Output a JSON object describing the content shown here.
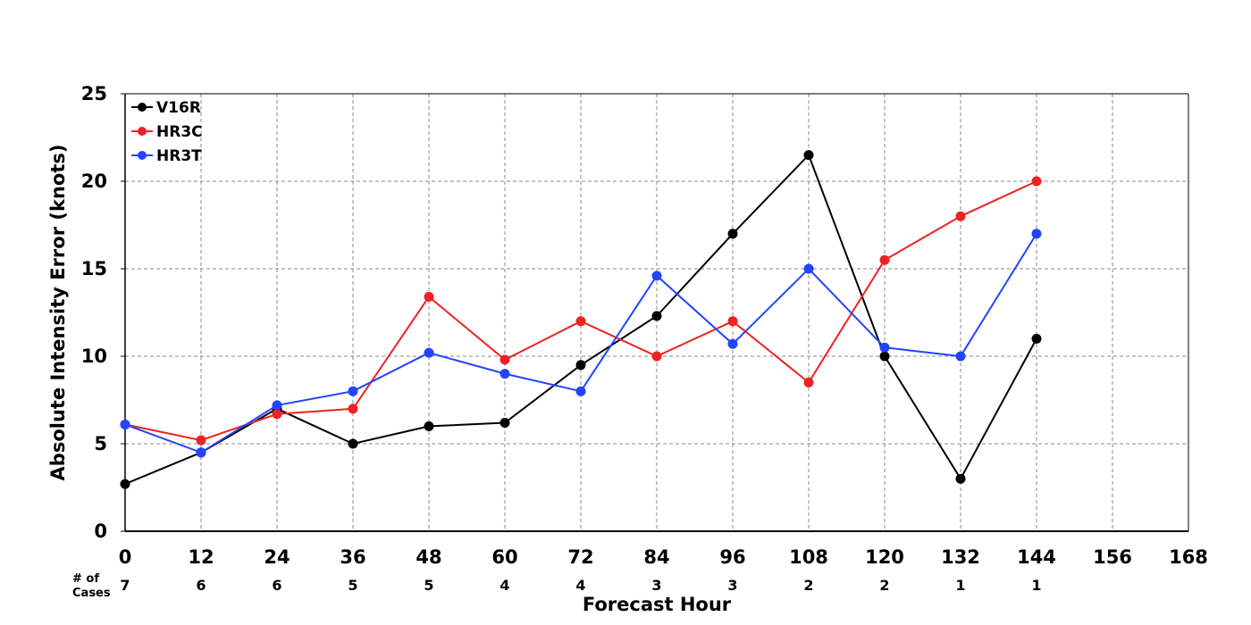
{
  "chart_data": {
    "type": "line",
    "xlabel": "Forecast Hour",
    "ylabel": "Absolute Intensity Error (knots)",
    "x_ticks": [
      0,
      12,
      24,
      36,
      48,
      60,
      72,
      84,
      96,
      108,
      120,
      132,
      144,
      156,
      168
    ],
    "y_ticks": [
      0,
      5,
      10,
      15,
      20,
      25
    ],
    "xlim": [
      0,
      168
    ],
    "ylim": [
      0,
      25
    ],
    "grid": true,
    "legend_position": "top-left",
    "cases_label": [
      "# of",
      "Cases"
    ],
    "cases": [
      {
        "x": 0,
        "n": "7"
      },
      {
        "x": 12,
        "n": "6"
      },
      {
        "x": 24,
        "n": "6"
      },
      {
        "x": 36,
        "n": "5"
      },
      {
        "x": 48,
        "n": "5"
      },
      {
        "x": 60,
        "n": "4"
      },
      {
        "x": 72,
        "n": "4"
      },
      {
        "x": 84,
        "n": "3"
      },
      {
        "x": 96,
        "n": "3"
      },
      {
        "x": 108,
        "n": "2"
      },
      {
        "x": 120,
        "n": "2"
      },
      {
        "x": 132,
        "n": "1"
      },
      {
        "x": 144,
        "n": "1"
      }
    ],
    "series": [
      {
        "name": "V16R",
        "color": "#000000",
        "x": [
          0,
          12,
          24,
          36,
          48,
          60,
          72,
          84,
          96,
          108,
          120,
          132,
          144
        ],
        "values": [
          2.7,
          4.5,
          7.0,
          5.0,
          6.0,
          6.2,
          9.5,
          12.3,
          17.0,
          21.5,
          10.0,
          3.0,
          11.0
        ]
      },
      {
        "name": "HR3C",
        "color": "#ee2222",
        "x": [
          0,
          12,
          24,
          36,
          48,
          60,
          72,
          84,
          96,
          108,
          120,
          132,
          144
        ],
        "values": [
          6.1,
          5.2,
          6.7,
          7.0,
          13.4,
          9.8,
          12.0,
          10.0,
          12.0,
          8.5,
          15.5,
          18.0,
          20.0
        ]
      },
      {
        "name": "HR3T",
        "color": "#2244ff",
        "x": [
          0,
          12,
          24,
          36,
          48,
          60,
          72,
          84,
          96,
          108,
          120,
          132,
          144
        ],
        "values": [
          6.1,
          4.5,
          7.2,
          8.0,
          10.2,
          9.0,
          8.0,
          14.6,
          10.7,
          15.0,
          10.5,
          10.0,
          17.0
        ]
      }
    ]
  }
}
